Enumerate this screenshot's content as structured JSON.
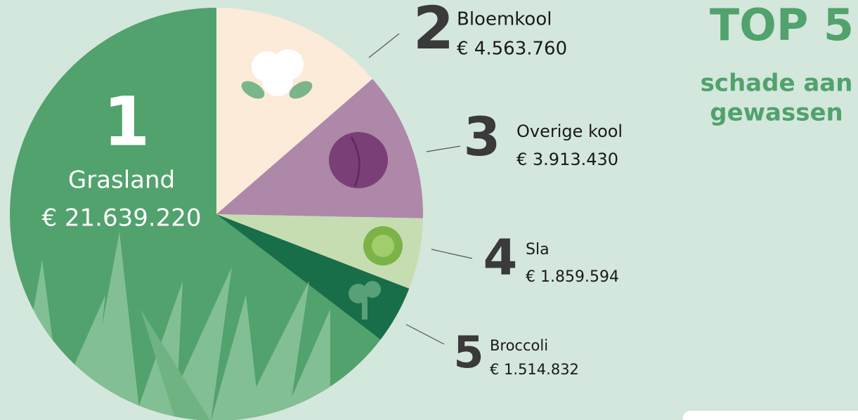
{
  "chart_data": {
    "type": "pie",
    "title": "TOP 5",
    "subtitle": [
      "schade aan",
      "gewassen"
    ],
    "ranks": [
      "1",
      "2",
      "3",
      "4",
      "5"
    ],
    "categories": [
      "Grasland",
      "Bloemkool",
      "Overige kool",
      "Sla",
      "Broccoli"
    ],
    "values": [
      21639220,
      4563760,
      3913430,
      1859594,
      1514832
    ],
    "value_labels": [
      "€ 21.639.220",
      "€ 4.563.760",
      "€ 3.913.430",
      "€ 1.859.594",
      "€ 1.514.832"
    ],
    "colors": [
      "#51a26d",
      "#fdebd9",
      "#ad88a9",
      "#c6ddb2",
      "#176e49"
    ],
    "title_color": "#51a26d"
  }
}
